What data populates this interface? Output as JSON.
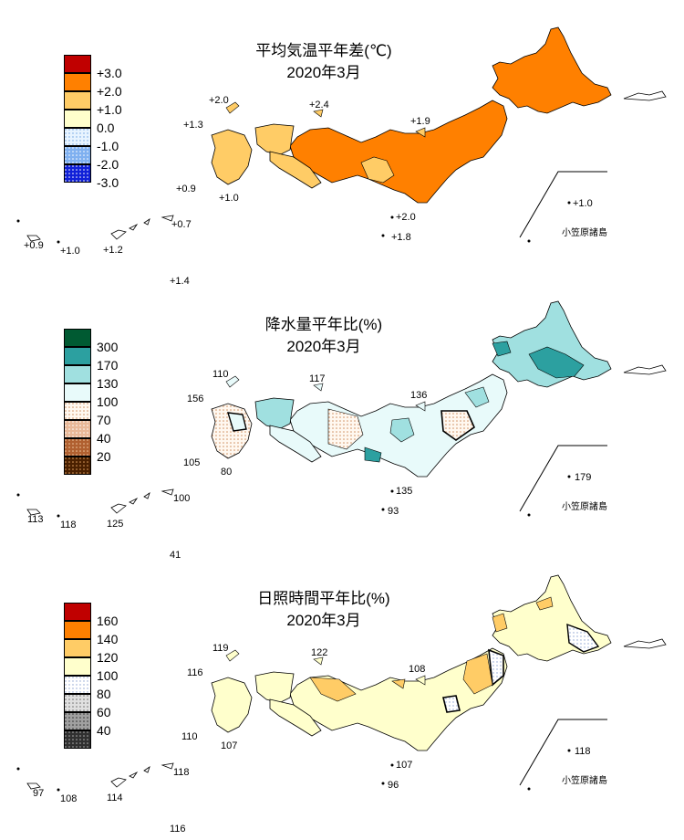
{
  "panels": [
    {
      "title": "平均気温平年差(℃)",
      "subtitle": "2020年3月",
      "legend": [
        "+3.0",
        "+2.0",
        "+1.0",
        "0.0",
        "-1.0",
        "-2.0",
        "-3.0"
      ],
      "legend_colors": [
        "#c00000",
        "#ff8000",
        "#ffcc66",
        "#ffffcc",
        "#e8f4ff",
        "#b0d0f8",
        "#1020d8"
      ],
      "values": {
        "hachijo": "+1.8",
        "izu": "+2.0",
        "sado": "+1.9",
        "oki": "+2.4",
        "tsushima": "+2.0",
        "iki": "+1.3",
        "goto": "+0.9",
        "koshiki": "+1.0",
        "amami": "+0.7",
        "okinawa": "+1.2",
        "ishigaki": "+0.9",
        "miyako": "+1.0",
        "daito": "+1.4",
        "chichijima": "+1.0"
      },
      "ogasawara_label": "小笠原諸島"
    },
    {
      "title": "降水量平年比(%)",
      "subtitle": "2020年3月",
      "legend": [
        "300",
        "170",
        "130",
        "100",
        "70",
        "40",
        "20"
      ],
      "legend_colors": [
        "#005a32",
        "#2ca0a0",
        "#a0e0e0",
        "#e8fafa",
        "#ffe8d0",
        "#d8a080",
        "#a05020",
        "#4a2000"
      ],
      "values": {
        "hachijo": "93",
        "izu": "135",
        "sado": "136",
        "oki": "117",
        "tsushima": "110",
        "iki": "156",
        "goto": "105",
        "koshiki": "80",
        "amami": "100",
        "okinawa": "125",
        "ishigaki": "113",
        "miyako": "118",
        "daito": "41",
        "chichijima": "179"
      },
      "ogasawara_label": "小笠原諸島"
    },
    {
      "title": "日照時間平年比(%)",
      "subtitle": "2020年3月",
      "legend": [
        "160",
        "140",
        "120",
        "100",
        "80",
        "60",
        "40"
      ],
      "legend_colors": [
        "#c00000",
        "#ff8000",
        "#ffcc66",
        "#ffffcc",
        "#f4f4f4",
        "#c8c8c8",
        "#808080",
        "#303030"
      ],
      "values": {
        "hachijo": "96",
        "izu": "107",
        "sado": "108",
        "oki": "122",
        "tsushima": "119",
        "iki": "116",
        "goto": "110",
        "koshiki": "107",
        "amami": "118",
        "okinawa": "114",
        "ishigaki": "97",
        "miyako": "108",
        "daito": "116",
        "chichijima": "118"
      },
      "ogasawara_label": "小笠原諸島"
    }
  ]
}
